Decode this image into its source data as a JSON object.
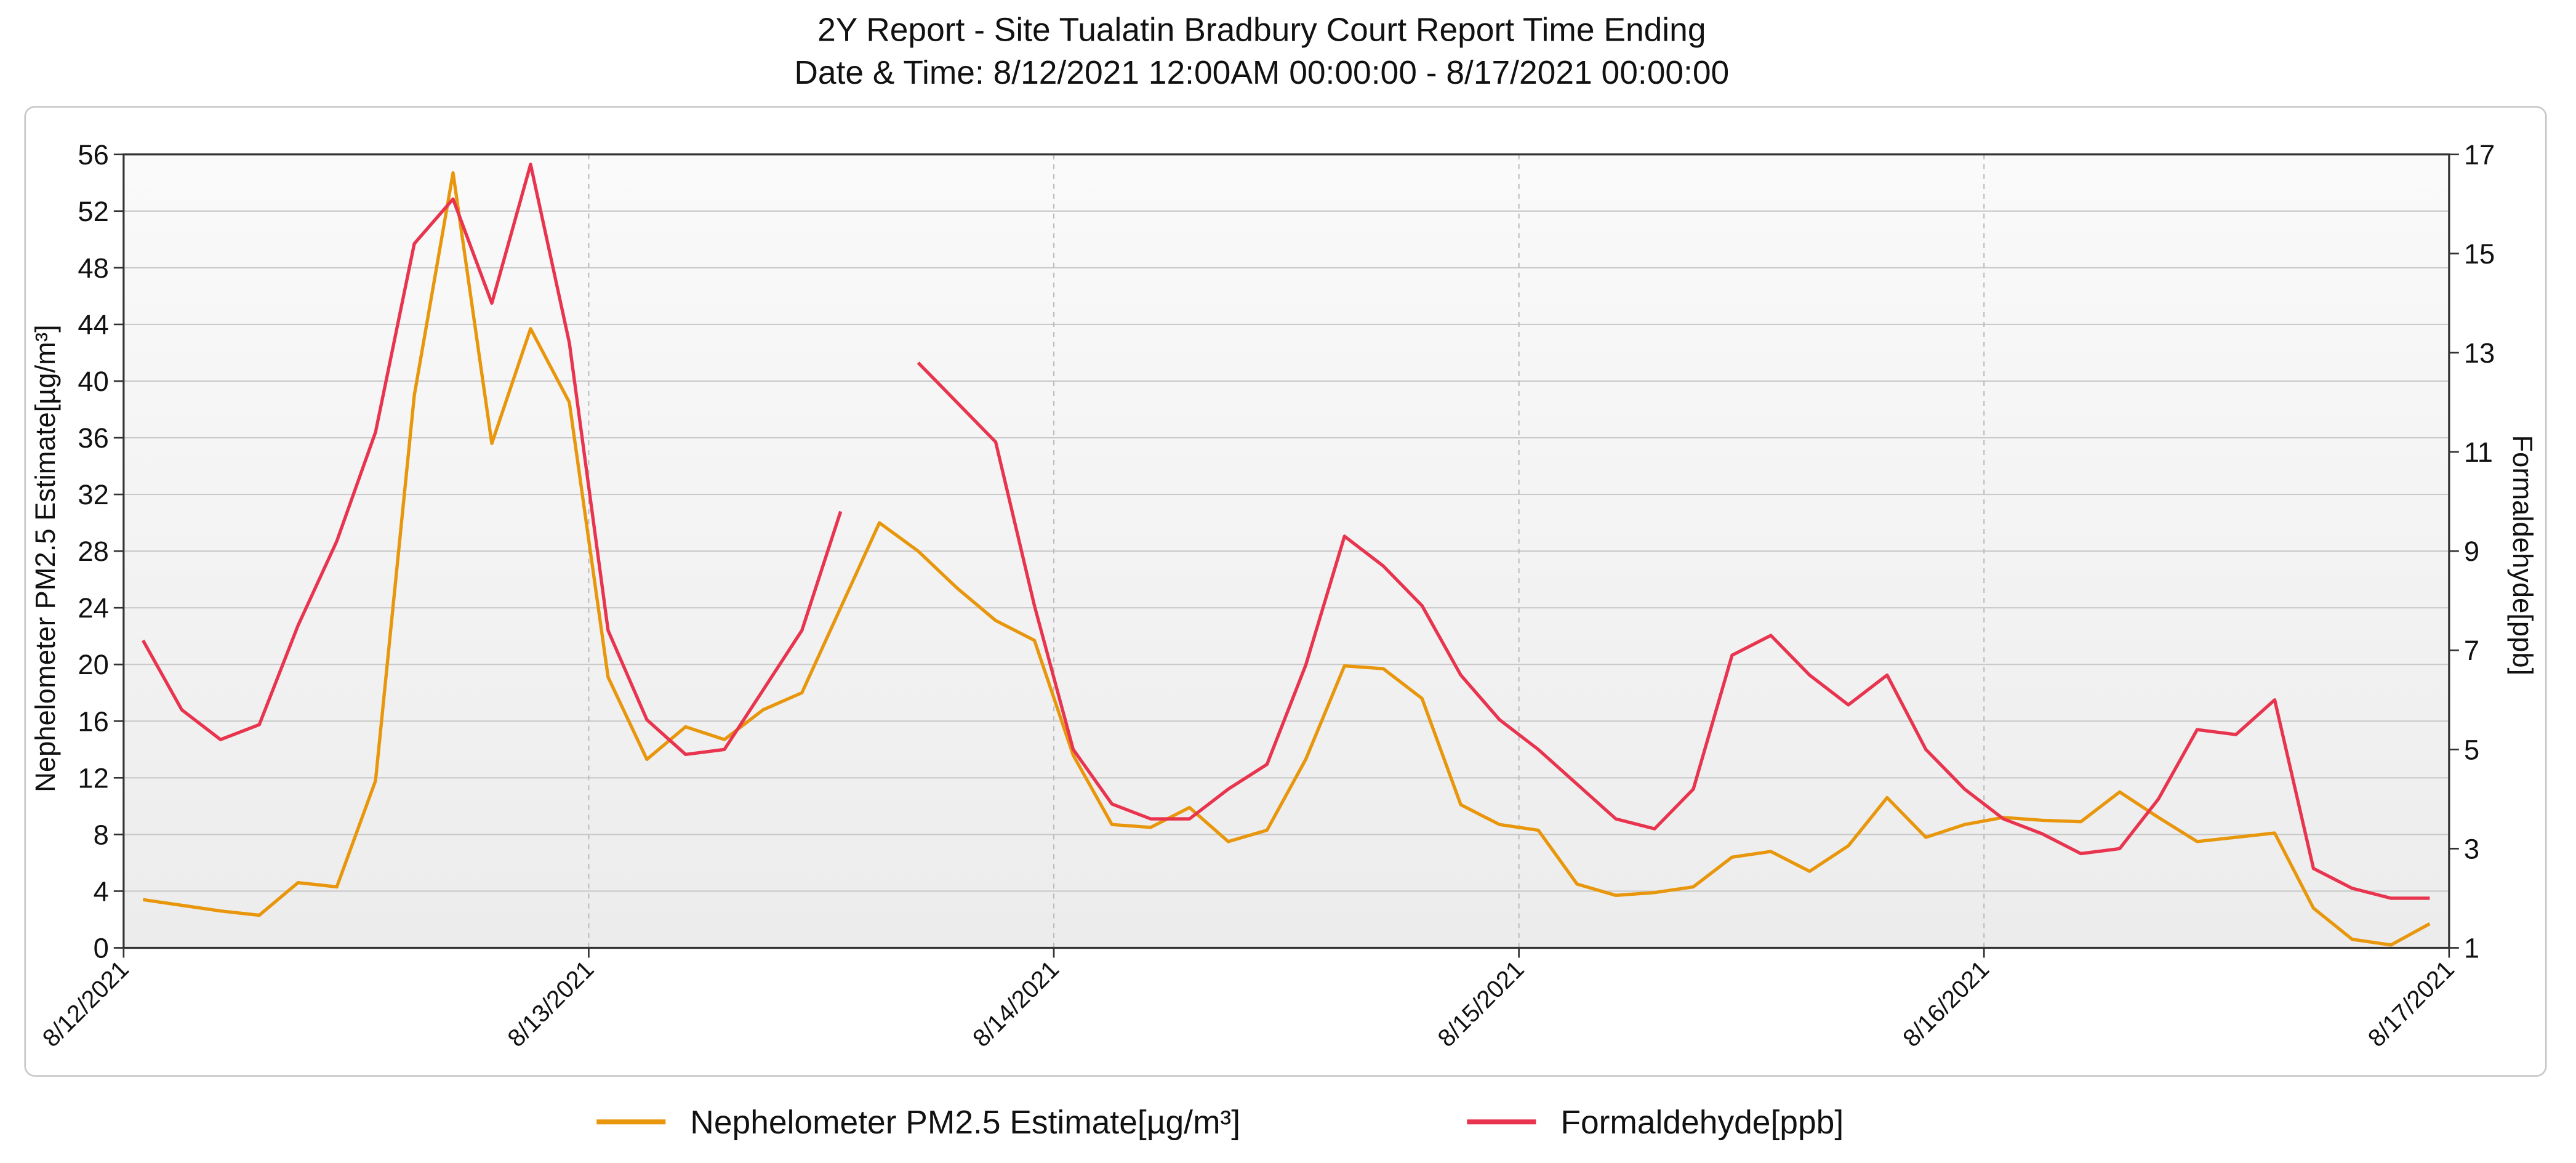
{
  "chart_data": {
    "type": "line",
    "title": "2Y Report - Site Tualatin Bradbury Court Report Time Ending",
    "subtitle": "Date & Time: 8/12/2021 12:00AM 00:00:00 - 8/17/2021 00:00:00",
    "y_label": "Nephelometer PM2.5 Estimate[µg/m³]",
    "y2_label": "Formaldehyde[ppb]",
    "x": [
      1,
      3,
      5,
      7,
      9,
      11,
      13,
      15,
      17,
      19,
      21,
      23,
      25,
      27,
      29,
      31,
      33,
      35,
      37,
      39,
      41,
      43,
      45,
      47,
      49,
      51,
      53,
      55,
      57,
      59,
      61,
      63,
      65,
      67,
      69,
      71,
      73,
      75,
      77,
      79,
      81,
      83,
      85,
      87,
      89,
      91,
      93,
      95,
      97,
      99,
      101,
      103,
      105,
      107,
      109,
      111,
      113,
      115,
      117,
      119
    ],
    "xlim": [
      0,
      120
    ],
    "xticks": [
      {
        "value": 0,
        "label": "8/12/2021"
      },
      {
        "value": 24,
        "label": "8/13/2021"
      },
      {
        "value": 48,
        "label": "8/14/2021"
      },
      {
        "value": 72,
        "label": "8/15/2021"
      },
      {
        "value": 96,
        "label": "8/16/2021"
      },
      {
        "value": 120,
        "label": "8/17/2021"
      }
    ],
    "ylim": [
      0,
      56
    ],
    "yticks": [
      0,
      4,
      8,
      12,
      16,
      20,
      24,
      28,
      32,
      36,
      40,
      44,
      48,
      52,
      56
    ],
    "y2lim": [
      1,
      17
    ],
    "y2ticks": [
      1,
      3,
      5,
      7,
      9,
      11,
      13,
      15,
      17
    ],
    "grid": true,
    "legend": "bottom",
    "series": [
      {
        "name": "Nephelometer PM2.5 Estimate[µg/m³]",
        "color": "#e8960c",
        "values": [
          3.4,
          3.0,
          2.6,
          2.3,
          4.6,
          4.3,
          11.8,
          39,
          54.7,
          35.6,
          43.7,
          38.5,
          19.1,
          13.3,
          15.6,
          14.7,
          16.8,
          18.0,
          24,
          30,
          28,
          25.4,
          23.1,
          21.7,
          13.6,
          8.7,
          8.5,
          9.9,
          7.5,
          8.3,
          13.3,
          19.9,
          19.7,
          17.6,
          10.1,
          8.7,
          8.3,
          4.5,
          3.7,
          3.9,
          4.3,
          6.4,
          6.8,
          5.4,
          7.2,
          10.6,
          7.8,
          8.7,
          9.2,
          9.0,
          8.9,
          11.0,
          9.2,
          7.5,
          7.8,
          8.1,
          2.8,
          0.6,
          0.2,
          1.7
        ]
      },
      {
        "name": "Formaldehyde[ppb]",
        "color": "#e8344e",
        "axis": "y2",
        "values": [
          7.2,
          5.8,
          5.2,
          5.5,
          7.5,
          9.2,
          11.4,
          15.2,
          16.1,
          14.0,
          16.8,
          13.2,
          7.4,
          5.6,
          4.9,
          5.0,
          6.2,
          7.4,
          9.8,
          null,
          12.8,
          12.0,
          11.2,
          7.9,
          5.0,
          3.9,
          3.6,
          3.6,
          4.2,
          4.7,
          6.7,
          9.3,
          8.7,
          7.9,
          6.5,
          5.6,
          5.0,
          4.3,
          3.6,
          3.4,
          4.2,
          6.9,
          7.3,
          6.5,
          5.9,
          6.5,
          5.0,
          4.2,
          3.6,
          3.3,
          2.9,
          3.0,
          4.0,
          5.4,
          5.3,
          6.0,
          2.6,
          2.2,
          2.0,
          2.0
        ]
      }
    ]
  }
}
